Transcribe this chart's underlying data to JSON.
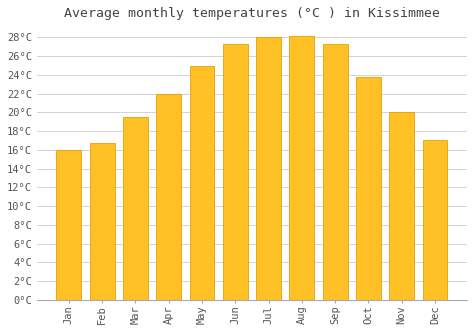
{
  "title": "Average monthly temperatures (°C ) in Kissimmee",
  "months": [
    "Jan",
    "Feb",
    "Mar",
    "Apr",
    "May",
    "Jun",
    "Jul",
    "Aug",
    "Sep",
    "Oct",
    "Nov",
    "Dec"
  ],
  "values": [
    16.0,
    16.7,
    19.5,
    22.0,
    25.0,
    27.3,
    28.0,
    28.2,
    27.3,
    23.8,
    20.0,
    17.0
  ],
  "bar_color": "#FFC125",
  "bar_edge_color": "#E8A000",
  "background_color": "#ffffff",
  "grid_color": "#cccccc",
  "ylim": [
    0,
    29
  ],
  "yticks": [
    0,
    2,
    4,
    6,
    8,
    10,
    12,
    14,
    16,
    18,
    20,
    22,
    24,
    26,
    28
  ],
  "title_fontsize": 9.5,
  "tick_fontsize": 7.5,
  "bar_width": 0.75
}
